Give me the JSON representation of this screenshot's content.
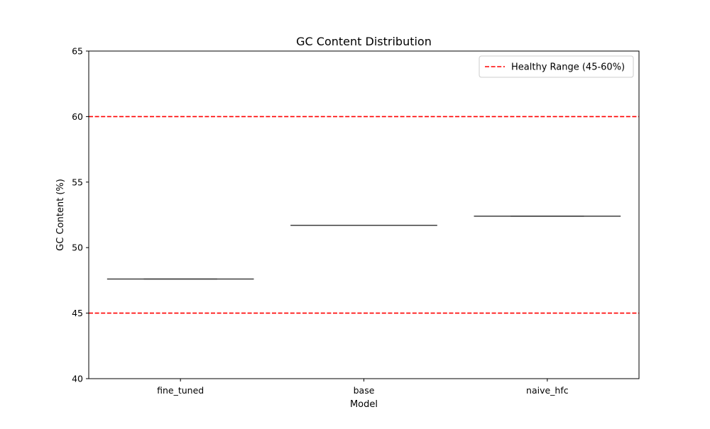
{
  "chart_data": {
    "type": "box",
    "title": "GC Content Distribution",
    "xlabel": "Model",
    "ylabel": "GC Content (%)",
    "ylim": [
      40,
      65
    ],
    "yticks": [
      40,
      45,
      50,
      55,
      60,
      65
    ],
    "categories": [
      "fine_tuned",
      "base",
      "naive_hfc"
    ],
    "values": [
      47.6,
      51.7,
      52.4
    ],
    "reference_lines": [
      {
        "y": 45,
        "color": "#ff0000",
        "style": "dashed"
      },
      {
        "y": 60,
        "color": "#ff0000",
        "style": "dashed"
      }
    ],
    "legend": {
      "entries": [
        {
          "label": "Healthy Range (45-60%)",
          "color": "#ff0000",
          "style": "dashed"
        }
      ],
      "placement": "upper-right"
    },
    "box_color": "#3f3f3f",
    "grid": false
  }
}
